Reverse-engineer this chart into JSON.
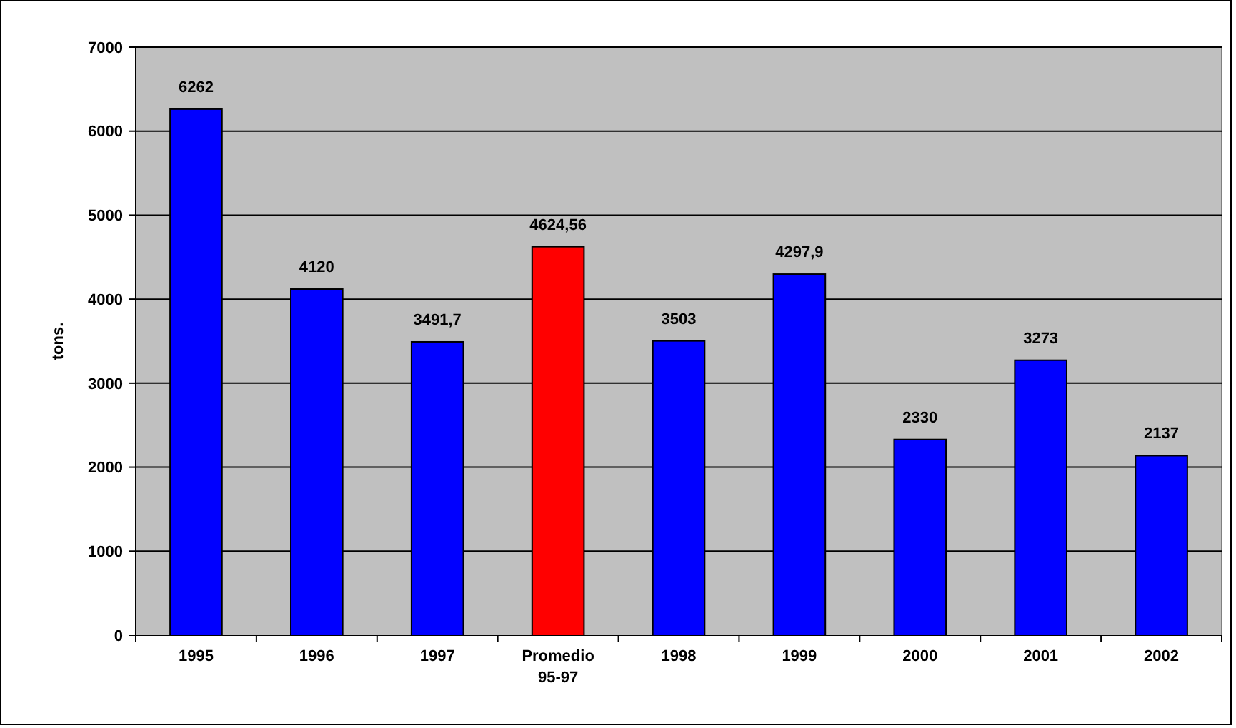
{
  "chart_data": {
    "type": "bar",
    "ylabel": "tons.",
    "categories": [
      "1995",
      "1996",
      "1997",
      "Promedio 95-97",
      "1998",
      "1999",
      "2000",
      "2001",
      "2002"
    ],
    "values": [
      6262,
      4120,
      3491.7,
      4624.56,
      3503,
      4297.9,
      2330,
      3273,
      2137
    ],
    "colors": [
      "#0000ff",
      "#0000ff",
      "#0000ff",
      "#ff0000",
      "#0000ff",
      "#0000ff",
      "#0000ff",
      "#0000ff",
      "#0000ff"
    ],
    "value_labels": [
      "6262",
      "4120",
      "3491,7",
      "4624,56",
      "3503",
      "4297,9",
      "2330",
      "3273",
      "2137"
    ],
    "ylim": [
      0,
      7000
    ],
    "yticks": [
      0,
      1000,
      2000,
      3000,
      4000,
      5000,
      6000,
      7000
    ],
    "grid": "y"
  }
}
